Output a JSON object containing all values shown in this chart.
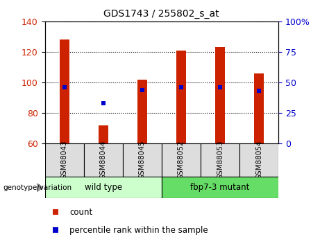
{
  "title": "GDS1743 / 255802_s_at",
  "samples": [
    "GSM88043",
    "GSM88044",
    "GSM88045",
    "GSM88052",
    "GSM88053",
    "GSM88054"
  ],
  "count_values": [
    128,
    72,
    102,
    121,
    123,
    106
  ],
  "percentile_values": [
    46,
    33,
    44,
    46,
    46,
    43
  ],
  "ylim_left": [
    60,
    140
  ],
  "ylim_right": [
    0,
    100
  ],
  "yticks_left": [
    60,
    80,
    100,
    120,
    140
  ],
  "yticks_right": [
    0,
    25,
    50,
    75,
    100
  ],
  "bar_color": "#cc2200",
  "dot_color": "#0000cc",
  "baseline": 60,
  "group1": {
    "label": "wild type",
    "indices": [
      0,
      1,
      2
    ]
  },
  "group2": {
    "label": "fbp7-3 mutant",
    "indices": [
      3,
      4,
      5
    ]
  },
  "group_color1": "#ccffcc",
  "group_color2": "#66dd66",
  "group_bg": "#dddddd",
  "legend_count_label": "count",
  "legend_pct_label": "percentile rank within the sample",
  "genotype_label": "genotype/variation",
  "bar_width": 0.25
}
